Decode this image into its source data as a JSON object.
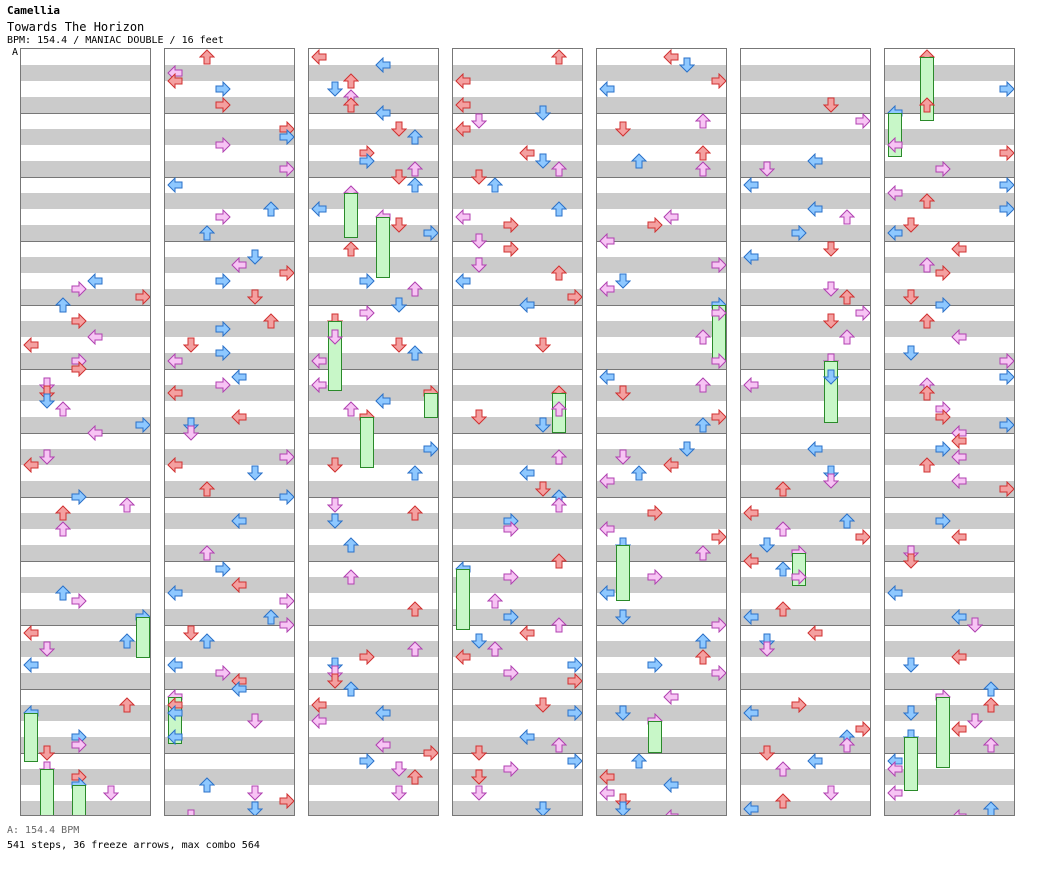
{
  "header": {
    "artist": "Camellia",
    "title": "Towards The Horizon",
    "meta": "BPM: 154.4 / MANIAC DOUBLE / 16 feet"
  },
  "marker": "A",
  "footer": {
    "bpm_line": "A: 154.4 BPM",
    "stats_line": "541 steps, 36 freeze arrows, max combo 564"
  },
  "colors": {
    "red": "#f4a0a0",
    "red_stroke": "#d03030",
    "blue": "#8ec8ff",
    "blue_stroke": "#2a70c8",
    "pink": "#f7c4f4",
    "pink_stroke": "#b040b0",
    "green": "#c8f7c8",
    "green_stroke": "#2a8a2a"
  }
}
